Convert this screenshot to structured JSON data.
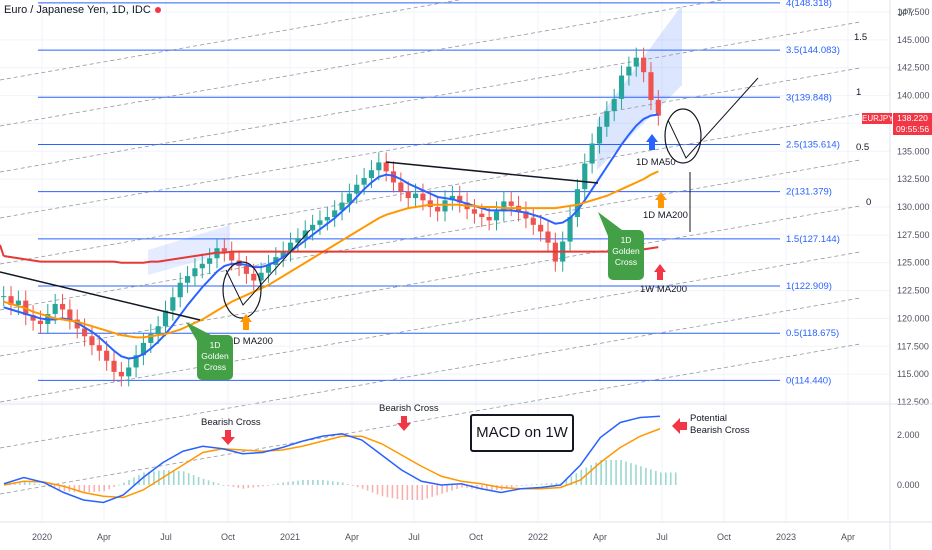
{
  "header": {
    "title": "Euro / Japanese Yen, 1D, IDC",
    "currency": "JPY"
  },
  "price_tag": {
    "symbol": "EURJPY",
    "price": "138.220",
    "countdown": "09:55:56"
  },
  "macd_label": "MACD on 1W",
  "colors": {
    "up": "#26a69a",
    "down": "#ef5350",
    "ma50": "#2962ff",
    "ma200_1d": "#ff9800",
    "ma200_1w": "#e53935",
    "fib": "#2962ff",
    "golden_cross_bg": "#43a047",
    "macd_line": "#2962ff",
    "signal_line": "#ff9800",
    "arrow_red": "#f23645"
  },
  "chart_data": [
    {
      "type": "line",
      "title": "Euro / Japanese Yen, 1D, IDC",
      "ylabel": "JPY",
      "ylim": [
        112.5,
        147.5
      ],
      "y_ticks": [
        "147.500",
        "145.000",
        "142.500",
        "140.000",
        "137.500",
        "135.000",
        "132.500",
        "130.000",
        "127.500",
        "125.000",
        "122.500",
        "120.000",
        "117.500",
        "115.000",
        "112.500"
      ],
      "x_ticks": [
        "2020",
        "Apr",
        "Jul",
        "Oct",
        "2021",
        "Apr",
        "Jul",
        "Oct",
        "2022",
        "Apr",
        "Jul",
        "Oct",
        "2023",
        "Apr"
      ],
      "fib_levels": [
        {
          "label": "0(114.440)",
          "value": 114.44
        },
        {
          "label": "0.5(118.675)",
          "value": 118.675
        },
        {
          "label": "1(122.909)",
          "value": 122.909
        },
        {
          "label": "1.5(127.144)",
          "value": 127.144
        },
        {
          "label": "2(131.379)",
          "value": 131.379
        },
        {
          "label": "2.5(135.614)",
          "value": 135.614
        },
        {
          "label": "3(139.848)",
          "value": 139.848
        },
        {
          "label": "3.5(144.083)",
          "value": 144.083
        },
        {
          "label": "4(148.318)",
          "value": 148.318
        }
      ],
      "channel_labels": [
        "1.5",
        "1",
        "0.5",
        "0"
      ],
      "series": [
        {
          "name": "EURJPY",
          "kind": "candles",
          "values": [
            122.0,
            121.2,
            121.6,
            120.3,
            119.8,
            119.5,
            120.4,
            121.3,
            120.8,
            119.9,
            119.1,
            118.4,
            117.6,
            117.1,
            116.2,
            115.2,
            114.8,
            115.6,
            116.7,
            117.8,
            118.6,
            119.3,
            120.7,
            121.9,
            123.2,
            123.8,
            124.5,
            124.9,
            125.4,
            126.3,
            126.0,
            125.2,
            124.7,
            124.0,
            123.4,
            124.1,
            124.8,
            125.5,
            126.0,
            126.8,
            127.2,
            127.9,
            128.4,
            128.8,
            129.1,
            129.7,
            130.4,
            131.2,
            132.0,
            132.6,
            133.3,
            134.0,
            133.2,
            132.2,
            131.4,
            130.8,
            131.2,
            130.6,
            130.0,
            129.6,
            130.6,
            131.0,
            130.4,
            129.8,
            129.4,
            129.1,
            128.8,
            129.6,
            130.5,
            130.1,
            129.6,
            129.0,
            128.4,
            127.8,
            126.8,
            125.1,
            126.9,
            129.1,
            131.6,
            133.9,
            135.7,
            137.2,
            138.6,
            139.7,
            141.8,
            142.6,
            143.4,
            142.1,
            139.6,
            138.2
          ]
        },
        {
          "name": "1D MA50",
          "kind": "line",
          "values": [
            121.0,
            120.8,
            120.6,
            120.4,
            120.2,
            120.0,
            119.9,
            119.9,
            120.0,
            119.9,
            119.6,
            119.2,
            118.8,
            118.3,
            117.7,
            117.1,
            116.6,
            116.4,
            116.5,
            116.8,
            117.3,
            117.9,
            118.6,
            119.4,
            120.3,
            121.2,
            122.0,
            122.8,
            123.5,
            124.2,
            124.7,
            124.9,
            124.9,
            124.8,
            124.6,
            124.6,
            124.8,
            125.1,
            125.5,
            126.0,
            126.5,
            127.0,
            127.5,
            128.0,
            128.5,
            129.0,
            129.6,
            130.2,
            130.9,
            131.6,
            132.2,
            132.7,
            132.9,
            132.8,
            132.5,
            132.1,
            131.8,
            131.5,
            131.2,
            130.9,
            130.8,
            130.7,
            130.5,
            130.3,
            130.1,
            129.9,
            129.7,
            129.7,
            129.7,
            129.7,
            129.6,
            129.5,
            129.3,
            129.1,
            128.8,
            128.5,
            128.6,
            129.0,
            129.7,
            130.6,
            131.6,
            132.6,
            133.6,
            134.6,
            135.6,
            136.5,
            137.3,
            137.9,
            138.2,
            138.3
          ]
        },
        {
          "name": "1D MA200",
          "kind": "line",
          "values": [
            121.5,
            121.3,
            121.1,
            120.9,
            120.6,
            120.4,
            120.2,
            120.0,
            119.9,
            119.8,
            119.7,
            119.5,
            119.3,
            119.1,
            118.9,
            118.7,
            118.5,
            118.4,
            118.3,
            118.3,
            118.4,
            118.5,
            118.6,
            118.8,
            119.0,
            119.3,
            119.6,
            119.9,
            120.3,
            120.7,
            121.1,
            121.5,
            121.8,
            122.1,
            122.4,
            122.7,
            123.0,
            123.4,
            123.8,
            124.2,
            124.6,
            125.0,
            125.4,
            125.8,
            126.2,
            126.6,
            127.0,
            127.4,
            127.8,
            128.2,
            128.6,
            129.0,
            129.3,
            129.5,
            129.7,
            129.9,
            130.0,
            130.1,
            130.2,
            130.2,
            130.2,
            130.2,
            130.2,
            130.1,
            130.1,
            130.0,
            130.0,
            130.0,
            129.9,
            129.9,
            129.9,
            129.9,
            129.9,
            129.9,
            129.9,
            129.9,
            130.0,
            130.1,
            130.2,
            130.4,
            130.6,
            130.8,
            131.0,
            131.3,
            131.6,
            131.9,
            132.2,
            132.5,
            132.9,
            133.2
          ]
        },
        {
          "name": "1W MA200",
          "kind": "line",
          "values": [
            125.6,
            125.5,
            125.4,
            125.3,
            125.2,
            125.1,
            125.1,
            125.1,
            125.1,
            125.1,
            125.1,
            125.1,
            125.1,
            125.1,
            125.1,
            125.1,
            125.0,
            125.0,
            125.0,
            125.0,
            125.1,
            125.1,
            125.2,
            125.3,
            125.4,
            125.5,
            125.6,
            125.7,
            125.8,
            125.9,
            125.9,
            126.0,
            126.0,
            126.0,
            126.0,
            126.0,
            126.0,
            126.0,
            126.0,
            126.0,
            126.0,
            126.0,
            126.0,
            126.0,
            126.0,
            126.0,
            126.0,
            126.0,
            126.0,
            126.0,
            126.0,
            126.0,
            126.0,
            126.0,
            126.0,
            126.0,
            126.0,
            126.0,
            126.0,
            126.0,
            126.0,
            126.0,
            126.0,
            126.0,
            126.0,
            126.0,
            126.0,
            126.0,
            126.0,
            126.0,
            126.0,
            126.0,
            126.0,
            126.0,
            126.0,
            126.0,
            126.0,
            126.0,
            126.0,
            126.0,
            126.0,
            126.0,
            126.0,
            126.0,
            126.0,
            126.1,
            126.1,
            126.2,
            126.3,
            126.4
          ]
        }
      ],
      "annotations": [
        "1D MA50",
        "1D MA200",
        "1D MA200",
        "1W MA200",
        "1D Golden Cross",
        "1D Golden Cross"
      ]
    },
    {
      "type": "line",
      "title": "MACD on 1W",
      "ylim": [
        -1.0,
        3.0
      ],
      "y_ticks": [
        "2.000",
        "0.000"
      ],
      "annotations": [
        "Bearish Cross",
        "Bearish Cross",
        "Potential Bearish Cross"
      ],
      "series": [
        {
          "name": "MACD",
          "values": [
            0.05,
            0.3,
            0.1,
            -0.3,
            -0.6,
            -0.7,
            -0.4,
            0.3,
            0.9,
            1.35,
            1.55,
            1.45,
            1.25,
            1.3,
            1.5,
            1.75,
            1.95,
            2.05,
            1.8,
            1.2,
            0.6,
            0.15,
            0.0,
            0.05,
            -0.15,
            -0.3,
            -0.15,
            -0.1,
            0.0,
            0.8,
            1.9,
            2.5,
            2.7,
            2.75
          ]
        },
        {
          "name": "Signal",
          "values": [
            0.0,
            0.15,
            0.12,
            -0.05,
            -0.3,
            -0.45,
            -0.5,
            -0.2,
            0.3,
            0.8,
            1.3,
            1.45,
            1.4,
            1.35,
            1.4,
            1.55,
            1.75,
            1.95,
            1.95,
            1.65,
            1.2,
            0.75,
            0.35,
            0.15,
            0.05,
            -0.1,
            -0.15,
            -0.15,
            -0.1,
            0.2,
            0.9,
            1.5,
            1.95,
            2.25
          ]
        }
      ]
    }
  ]
}
